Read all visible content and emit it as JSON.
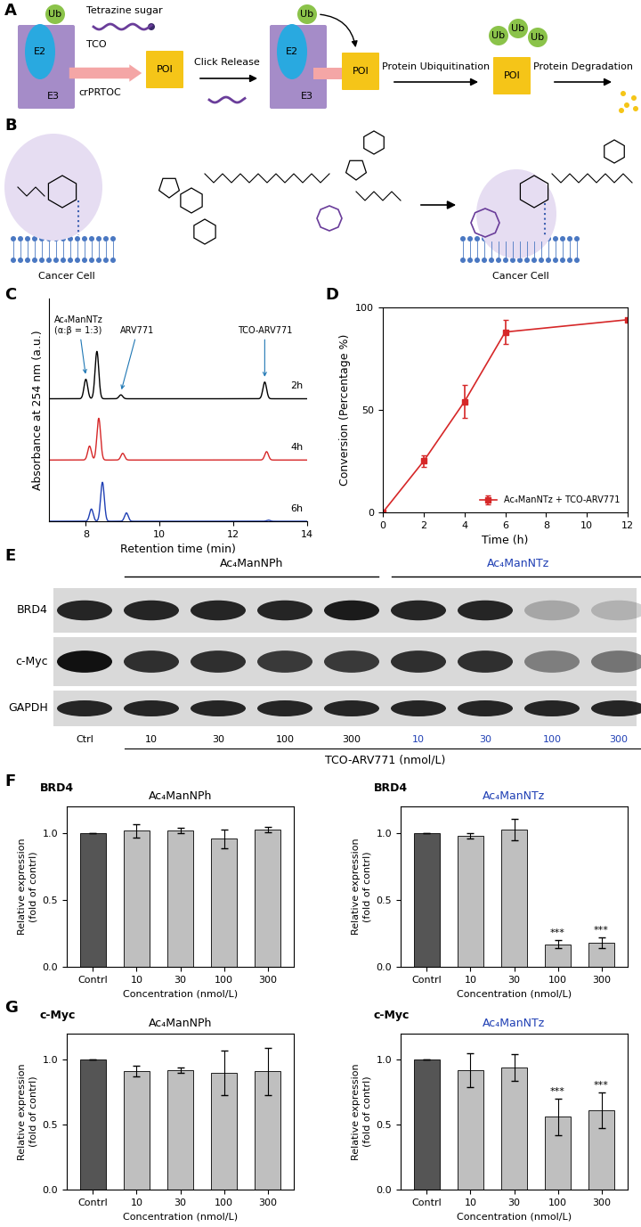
{
  "panel_labels": [
    "A",
    "B",
    "C",
    "D",
    "E",
    "F",
    "G"
  ],
  "diagram_a": {
    "nodes": [
      "Ub",
      "E2",
      "E3",
      "Tetrazine sugar",
      "TCO",
      "crPRTOC",
      "POI",
      "Click Release",
      "Ub",
      "E2",
      "E3",
      "POI",
      "Protein Ubiquitination",
      "Ub",
      "Ub",
      "Ub",
      "POI",
      "Protein Degradation"
    ]
  },
  "diagram_b": {
    "nodes": [
      "Cancer Cell",
      "Cancer Cell"
    ]
  },
  "blot_e": {
    "groups": [
      "Ac₄ManNPh",
      "Ac₄ManNTz"
    ],
    "lanes": [
      "Ctrl",
      "10",
      "30",
      "100",
      "300",
      "10",
      "30",
      "100",
      "300"
    ],
    "axis_label": "TCO-ARV771 (nmol/L)",
    "rows": [
      {
        "label": "BRD4",
        "intensity": [
          0.9,
          0.9,
          0.9,
          0.9,
          0.95,
          0.9,
          0.9,
          0.25,
          0.2
        ]
      },
      {
        "label": "c-Myc",
        "intensity": [
          1.0,
          0.85,
          0.85,
          0.8,
          0.8,
          0.85,
          0.85,
          0.45,
          0.5
        ]
      },
      {
        "label": "GAPDH",
        "intensity": [
          0.9,
          0.9,
          0.9,
          0.9,
          0.9,
          0.9,
          0.9,
          0.9,
          0.9
        ]
      }
    ]
  },
  "chart_data": [
    {
      "type": "line",
      "xlabel": "Retention time (min)",
      "ylabel": "Absorbance at 254 nm (a.u.)",
      "xlim": [
        7,
        14
      ],
      "xticks": [
        8,
        10,
        12,
        14
      ],
      "ylim": [
        0,
        4.0
      ],
      "tick_labels": "x",
      "series": [
        {
          "name": "2h",
          "color": "#000000",
          "baseline": 2.2,
          "peaks": [
            {
              "x": 8.0,
              "height": 0.35
            },
            {
              "x": 8.3,
              "height": 0.85
            },
            {
              "x": 8.95,
              "height": 0.07
            },
            {
              "x": 12.85,
              "height": 0.3
            }
          ]
        },
        {
          "name": "4h",
          "color": "#d62728",
          "baseline": 1.1,
          "peaks": [
            {
              "x": 8.1,
              "height": 0.25
            },
            {
              "x": 8.35,
              "height": 0.75
            },
            {
              "x": 9.0,
              "height": 0.12
            },
            {
              "x": 12.9,
              "height": 0.15
            }
          ]
        },
        {
          "name": "6h",
          "color": "#1f3fb4",
          "baseline": 0.0,
          "peaks": [
            {
              "x": 8.15,
              "height": 0.22
            },
            {
              "x": 8.45,
              "height": 0.7
            },
            {
              "x": 9.1,
              "height": 0.15
            },
            {
              "x": 12.95,
              "height": 0.02
            }
          ]
        }
      ],
      "annotations": [
        {
          "text": "Ac₄ManNTz\n(α:β = 1:3)",
          "x": 8.0
        },
        {
          "text": "ARV771",
          "x": 8.95
        },
        {
          "text": "TCO-ARV771",
          "x": 12.85
        }
      ]
    },
    {
      "type": "line",
      "xlabel": "Time (h)",
      "ylabel": "Conversion (Percentage %)",
      "x": [
        0,
        2,
        4,
        6,
        12
      ],
      "series": [
        {
          "name": "Ac₄ManNTz + TCO-ARV771",
          "color": "#d62728",
          "marker": "square",
          "values": [
            0,
            25,
            54,
            88,
            94
          ],
          "errors": [
            0,
            3,
            8,
            6,
            0
          ]
        }
      ],
      "xlim": [
        0,
        12
      ],
      "xticks": [
        0,
        2,
        4,
        6,
        8,
        10,
        12
      ],
      "ylim": [
        0,
        100
      ],
      "yticks": [
        0,
        50,
        100
      ],
      "legend": "lower right"
    },
    {
      "type": "bar",
      "title": "Ac₄ManNPh",
      "subtitle": "BRD4",
      "xlabel": "Concentration (nmol/L)",
      "ylabel": "Relative expression\n(fold of contrl)",
      "categories": [
        "Contrl",
        "10",
        "30",
        "100",
        "300"
      ],
      "values": [
        1.0,
        1.02,
        1.02,
        0.96,
        1.03
      ],
      "errors": [
        0,
        0.05,
        0.02,
        0.07,
        0.02
      ],
      "colors": [
        "#555555",
        "#bfbfbf",
        "#bfbfbf",
        "#bfbfbf",
        "#bfbfbf"
      ],
      "ylim": [
        0,
        1.2
      ],
      "yticks": [
        {
          "value": 0,
          "label": "0.0"
        },
        {
          "value": 0.5,
          "label": "0.5"
        },
        {
          "value": 1,
          "label": "1.0"
        }
      ]
    },
    {
      "type": "bar",
      "title": "Ac₄ManNTz",
      "subtitle": "BRD4",
      "xlabel": "Concentration (nmol/L)",
      "ylabel": "Relative expression\n(fold of contrl)",
      "categories": [
        "Contrl",
        "10",
        "30",
        "100",
        "300"
      ],
      "values": [
        1.0,
        0.98,
        1.03,
        0.17,
        0.18
      ],
      "errors": [
        0,
        0.02,
        0.08,
        0.03,
        0.04
      ],
      "colors": [
        "#555555",
        "#bfbfbf",
        "#bfbfbf",
        "#bfbfbf",
        "#bfbfbf"
      ],
      "ylim": [
        0,
        1.2
      ],
      "yticks": [
        {
          "value": 0,
          "label": "0.0"
        },
        {
          "value": 0.5,
          "label": "0.5"
        },
        {
          "value": 1,
          "label": "1.0"
        }
      ],
      "annotations": [
        {
          "x": "100",
          "text": "***"
        },
        {
          "x": "300",
          "text": "***"
        }
      ]
    },
    {
      "type": "bar",
      "title": "Ac₄ManNPh",
      "subtitle": "c-Myc",
      "xlabel": "Concentration (nmol/L)",
      "ylabel": "Relative expression\n(fold of contrl)",
      "categories": [
        "Contrl",
        "10",
        "30",
        "100",
        "300"
      ],
      "values": [
        1.0,
        0.91,
        0.92,
        0.9,
        0.91
      ],
      "errors": [
        0,
        0.04,
        0.02,
        0.17,
        0.18
      ],
      "colors": [
        "#555555",
        "#bfbfbf",
        "#bfbfbf",
        "#bfbfbf",
        "#bfbfbf"
      ],
      "ylim": [
        0,
        1.2
      ],
      "yticks": [
        {
          "value": 0,
          "label": "0.0"
        },
        {
          "value": 0.5,
          "label": "0.5"
        },
        {
          "value": 1,
          "label": "1.0"
        }
      ]
    },
    {
      "type": "bar",
      "title": "Ac₄ManNTz",
      "subtitle": "c-Myc",
      "xlabel": "Concentration (nmol/L)",
      "ylabel": "Relative expression\n(fold of contrl)",
      "categories": [
        "Contrl",
        "10",
        "30",
        "100",
        "300"
      ],
      "values": [
        1.0,
        0.92,
        0.94,
        0.56,
        0.61
      ],
      "errors": [
        0,
        0.13,
        0.1,
        0.14,
        0.14
      ],
      "colors": [
        "#555555",
        "#bfbfbf",
        "#bfbfbf",
        "#bfbfbf",
        "#bfbfbf"
      ],
      "ylim": [
        0,
        1.2
      ],
      "yticks": [
        {
          "value": 0,
          "label": "0.0"
        },
        {
          "value": 0.5,
          "label": "0.5"
        },
        {
          "value": 1,
          "label": "1.0"
        }
      ],
      "annotations": [
        {
          "x": "100",
          "text": "***"
        },
        {
          "x": "300",
          "text": "***"
        }
      ]
    }
  ]
}
